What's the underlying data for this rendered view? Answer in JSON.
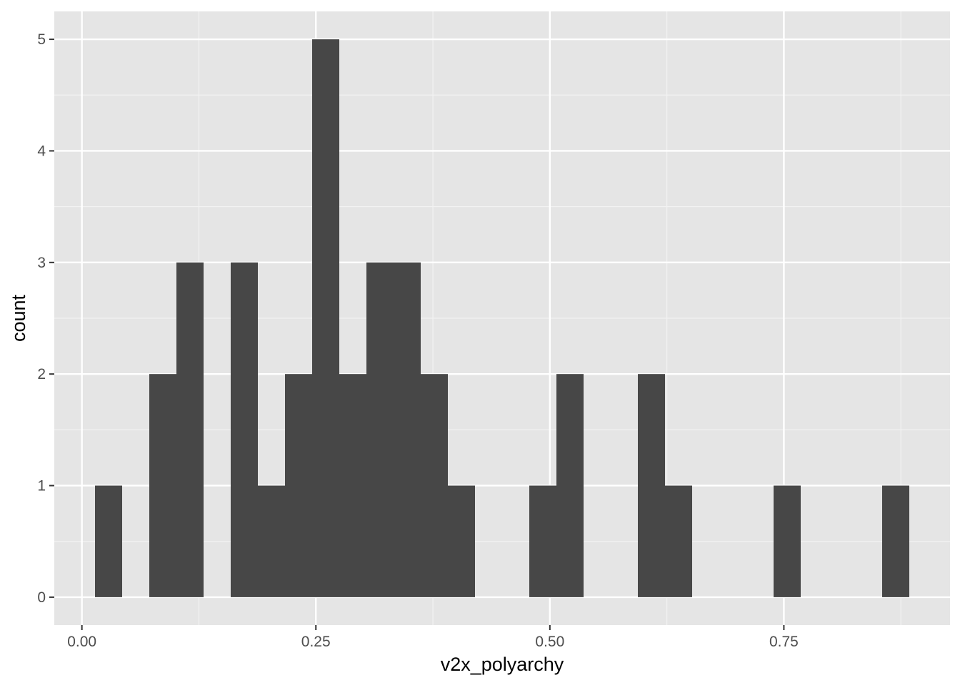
{
  "chart_data": {
    "type": "bar",
    "subtype": "histogram",
    "title": "",
    "xlabel": "v2x_polyarchy",
    "ylabel": "count",
    "bin_width": 0.029,
    "bins": [
      {
        "x0": 0.014,
        "x1": 0.043,
        "count": 1
      },
      {
        "x0": 0.043,
        "x1": 0.072,
        "count": 0
      },
      {
        "x0": 0.072,
        "x1": 0.101,
        "count": 2
      },
      {
        "x0": 0.101,
        "x1": 0.13,
        "count": 3
      },
      {
        "x0": 0.13,
        "x1": 0.159,
        "count": 0
      },
      {
        "x0": 0.159,
        "x1": 0.188,
        "count": 3
      },
      {
        "x0": 0.188,
        "x1": 0.217,
        "count": 1
      },
      {
        "x0": 0.217,
        "x1": 0.246,
        "count": 2
      },
      {
        "x0": 0.246,
        "x1": 0.275,
        "count": 5
      },
      {
        "x0": 0.275,
        "x1": 0.304,
        "count": 2
      },
      {
        "x0": 0.304,
        "x1": 0.333,
        "count": 3
      },
      {
        "x0": 0.333,
        "x1": 0.362,
        "count": 3
      },
      {
        "x0": 0.362,
        "x1": 0.391,
        "count": 2
      },
      {
        "x0": 0.391,
        "x1": 0.42,
        "count": 1
      },
      {
        "x0": 0.42,
        "x1": 0.449,
        "count": 0
      },
      {
        "x0": 0.449,
        "x1": 0.478,
        "count": 0
      },
      {
        "x0": 0.478,
        "x1": 0.507,
        "count": 1
      },
      {
        "x0": 0.507,
        "x1": 0.536,
        "count": 2
      },
      {
        "x0": 0.536,
        "x1": 0.565,
        "count": 0
      },
      {
        "x0": 0.565,
        "x1": 0.594,
        "count": 0
      },
      {
        "x0": 0.594,
        "x1": 0.623,
        "count": 2
      },
      {
        "x0": 0.623,
        "x1": 0.652,
        "count": 1
      },
      {
        "x0": 0.652,
        "x1": 0.681,
        "count": 0
      },
      {
        "x0": 0.681,
        "x1": 0.71,
        "count": 0
      },
      {
        "x0": 0.71,
        "x1": 0.739,
        "count": 0
      },
      {
        "x0": 0.739,
        "x1": 0.768,
        "count": 1
      },
      {
        "x0": 0.768,
        "x1": 0.797,
        "count": 0
      },
      {
        "x0": 0.797,
        "x1": 0.826,
        "count": 0
      },
      {
        "x0": 0.826,
        "x1": 0.855,
        "count": 0
      },
      {
        "x0": 0.855,
        "x1": 0.884,
        "count": 1
      }
    ],
    "xlim": [
      -0.0295,
      0.9275
    ],
    "ylim": [
      -0.25,
      5.25
    ],
    "x_ticks": [
      0.0,
      0.25,
      0.5,
      0.75
    ],
    "x_tick_labels": [
      "0.00",
      "0.25",
      "0.50",
      "0.75"
    ],
    "y_ticks": [
      0,
      1,
      2,
      3,
      4,
      5
    ],
    "y_tick_labels": [
      "0",
      "1",
      "2",
      "3",
      "4",
      "5"
    ],
    "grid": true,
    "legend": "none",
    "colors": {
      "bar": "#474747",
      "panel_background": "#e5e5e5",
      "grid_major": "#ffffff",
      "grid_minor": "#f2f2f2",
      "tick_text": "#4d4d4d",
      "axis_title": "#000000"
    }
  }
}
